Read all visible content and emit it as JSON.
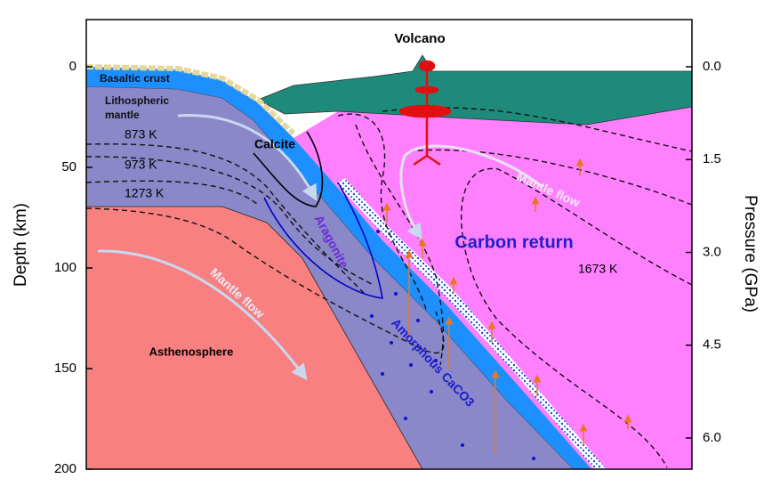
{
  "axes": {
    "left": {
      "label": "Depth (km)",
      "ticks": [
        0,
        50,
        100,
        150,
        200
      ]
    },
    "right": {
      "label": "Pressure (GPa)",
      "ticks": [
        {
          "value": 0,
          "label": "0.0"
        },
        {
          "value": 1.5,
          "label": "1.5"
        },
        {
          "value": 3,
          "label": "3.0"
        },
        {
          "value": 4.5,
          "label": "4.5"
        },
        {
          "value": 6,
          "label": "6.0"
        }
      ]
    }
  },
  "labels": {
    "volcano": "Volcano",
    "basaltic_crust": "Basaltic crust",
    "lithospheric_mantle": [
      "Lithospheric",
      "mantle"
    ],
    "isotherms": [
      "873 K",
      "973 K",
      "1273 K",
      "1673 K"
    ],
    "calcite": "Calcite",
    "aragonite": "Aragonite",
    "amorphous": "Amorphous CaCO3",
    "carbon_return": "Carbon return",
    "mantle_flow": [
      "Mantle flow",
      "Mantle flow"
    ],
    "asthenosphere": "Asthenosphere"
  }
}
